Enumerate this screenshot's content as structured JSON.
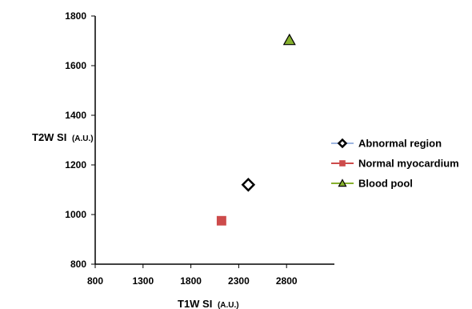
{
  "chart_data": {
    "type": "scatter",
    "xlabel": {
      "main": "T1W SI",
      "unit": "(A.U.)"
    },
    "ylabel": {
      "main": "T2W SI",
      "unit": "(A.U.)"
    },
    "xlim": [
      800,
      3300
    ],
    "ylim": [
      800,
      1800
    ],
    "xticks": [
      "800",
      "1300",
      "1800",
      "2300",
      "2800"
    ],
    "yticks": [
      "800",
      "1000",
      "1200",
      "1400",
      "1600",
      "1800"
    ],
    "grid": false,
    "legend_position": "right",
    "series": [
      {
        "name": "Abnormal region",
        "marker": "diamond-open",
        "color": "#000000",
        "line_color": "#9db5e0",
        "x": [
          2400
        ],
        "y": [
          1120
        ]
      },
      {
        "name": "Normal myocardium",
        "marker": "square",
        "color": "#cd4b4b",
        "line_color": "#cd4b4b",
        "x": [
          2120
        ],
        "y": [
          975
        ]
      },
      {
        "name": "Blood pool",
        "marker": "triangle",
        "color": "#86b02e",
        "line_color": "#86b02e",
        "x": [
          2830
        ],
        "y": [
          1703
        ]
      }
    ]
  }
}
